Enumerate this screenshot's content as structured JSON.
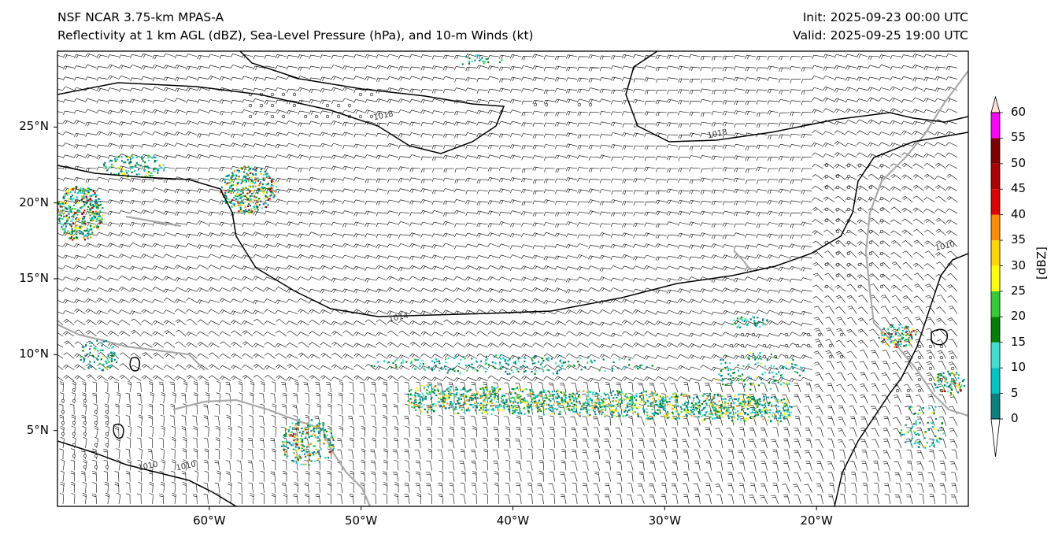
{
  "header": {
    "title_line1": "NSF NCAR 3.75-km MPAS-A",
    "title_line2": "Reflectivity at 1 km AGL (dBZ), Sea-Level Pressure (hPa), and 10-m Winds (kt)",
    "init": "Init: 2025-09-23 00:00 UTC",
    "valid": "Valid: 2025-09-25 19:00 UTC"
  },
  "map": {
    "extent": {
      "lon_min": -70,
      "lon_max": -10,
      "lat_min": 0,
      "lat_max": 30
    },
    "lat_ticks": [
      {
        "value": 25,
        "label": "25°N"
      },
      {
        "value": 20,
        "label": "20°N"
      },
      {
        "value": 15,
        "label": "15°N"
      },
      {
        "value": 10,
        "label": "10°N"
      },
      {
        "value": 5,
        "label": "5°N"
      }
    ],
    "lon_ticks": [
      {
        "value": -60,
        "label": "60°W"
      },
      {
        "value": -50,
        "label": "50°W"
      },
      {
        "value": -40,
        "label": "40°W"
      },
      {
        "value": -30,
        "label": "30°W"
      },
      {
        "value": -20,
        "label": "20°W"
      }
    ],
    "isobar_labels": [
      {
        "text": "1018",
        "lon": -48.5,
        "lat": 25.6
      },
      {
        "text": "1018",
        "lon": -26.5,
        "lat": 24.4
      },
      {
        "text": "1014",
        "lon": -47.5,
        "lat": 12.3
      },
      {
        "text": "1010",
        "lon": -64,
        "lat": 2.5
      },
      {
        "text": "1010",
        "lon": -61.5,
        "lat": 2.5
      },
      {
        "text": "1010",
        "lon": -11.5,
        "lat": 17
      }
    ]
  },
  "colorbar": {
    "unit_label": "[dBZ]",
    "levels": [
      "0",
      "5",
      "10",
      "15",
      "20",
      "25",
      "30",
      "35",
      "40",
      "45",
      "50",
      "55",
      "60"
    ],
    "colors": [
      "#0a8080",
      "#00c5c5",
      "#40e0d0",
      "#008000",
      "#32cd32",
      "#ffff00",
      "#ffd700",
      "#ff8c00",
      "#e00000",
      "#b00000",
      "#800000",
      "#ff00ff",
      "#fde0d8"
    ],
    "under_color": "#ffffff"
  },
  "legend": {
    "isobar_color": "#000000",
    "coastline_color": "#aaaaaa",
    "barb_color": "#000000"
  }
}
